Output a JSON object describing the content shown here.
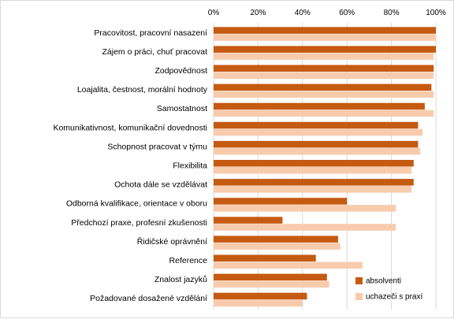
{
  "chart_data": {
    "type": "bar",
    "orientation": "horizontal",
    "x_axis_position": "top",
    "categories": [
      "Pracovitost, pracovní nasazení",
      "Zájem o práci, chuť pracovat",
      "Zodpovědnost",
      "Loajalita, čestnost, morální hodnoty",
      "Samostatnost",
      "Komunikativnost, komunikační dovednosti",
      "Schopnost pracovat v týmu",
      "Flexibilita",
      "Ochota dále se vzdělávat",
      "Odborná kvalifikace, orientace v oboru",
      "Předchozí praxe, profesní zkušenosti",
      "Řidičské oprávnění",
      "Reference",
      "Znalost jazyků",
      "Požadované dosažené vzdělání"
    ],
    "series": [
      {
        "name": "absolventi",
        "color": "#c55a11",
        "values": [
          100,
          100,
          99,
          98,
          95,
          92,
          92,
          90,
          90,
          60,
          31,
          56,
          46,
          51,
          42
        ]
      },
      {
        "name": "uchazeči s praxí",
        "color": "#f8cbad",
        "values": [
          100,
          99,
          99,
          99,
          99,
          94,
          93,
          89,
          89,
          82,
          82,
          57,
          67,
          52,
          40
        ]
      }
    ],
    "xlim": [
      0,
      100
    ],
    "xticks": [
      "0%",
      "20%",
      "40%",
      "60%",
      "80%",
      "100%"
    ],
    "grid": true,
    "legend_position": "bottom-right"
  }
}
